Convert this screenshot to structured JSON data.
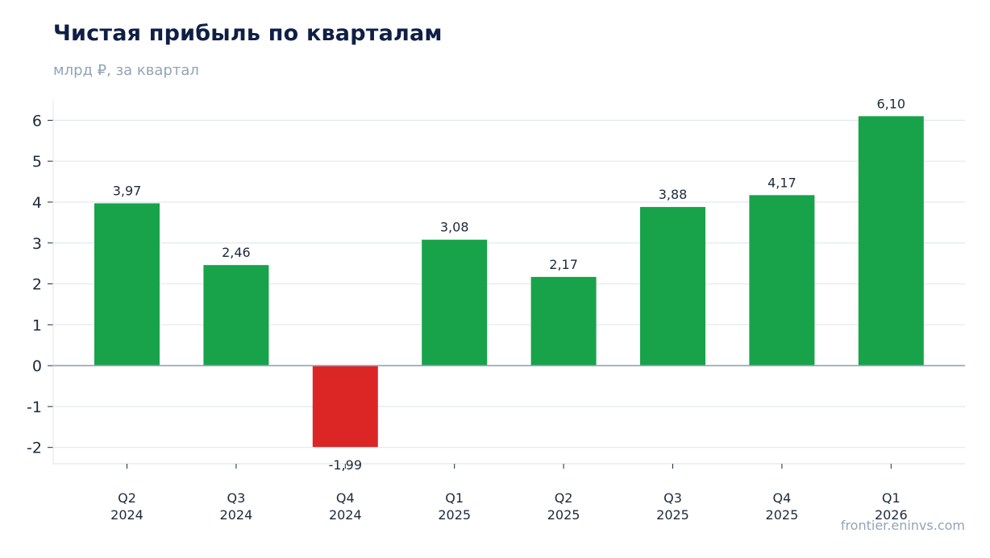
{
  "header": {
    "title": "Чистая прибыль по кварталам",
    "subtitle": "млрд ₽, за квартал"
  },
  "footer": {
    "source": "frontier.eninvs.com"
  },
  "colors": {
    "positive": "#18a34a",
    "negative": "#dc2626",
    "grid": "#e2e8f0",
    "zero_line": "#94a3b8",
    "text": "#1e293b"
  },
  "chart_data": {
    "type": "bar",
    "title": "Чистая прибыль по кварталам",
    "subtitle": "млрд ₽, за квартал",
    "categories": [
      [
        "Q2",
        "2024"
      ],
      [
        "Q3",
        "2024"
      ],
      [
        "Q4",
        "2024"
      ],
      [
        "Q1",
        "2025"
      ],
      [
        "Q2",
        "2025"
      ],
      [
        "Q3",
        "2025"
      ],
      [
        "Q4",
        "2025"
      ],
      [
        "Q1",
        "2026"
      ]
    ],
    "values": [
      3.97,
      2.46,
      -1.99,
      3.08,
      2.17,
      3.88,
      4.17,
      6.1
    ],
    "value_labels": [
      "3,97",
      "2,46",
      "-1,99",
      "3,08",
      "2,17",
      "3,88",
      "4,17",
      "6,10"
    ],
    "yticks": [
      -2,
      -1,
      0,
      1,
      2,
      3,
      4,
      5,
      6
    ],
    "ytick_labels": [
      "-2",
      "-1",
      "0",
      "1",
      "2",
      "3",
      "4",
      "5",
      "6"
    ],
    "ylim": [
      -2.4,
      6.5
    ],
    "grid": true,
    "legend": "none"
  }
}
